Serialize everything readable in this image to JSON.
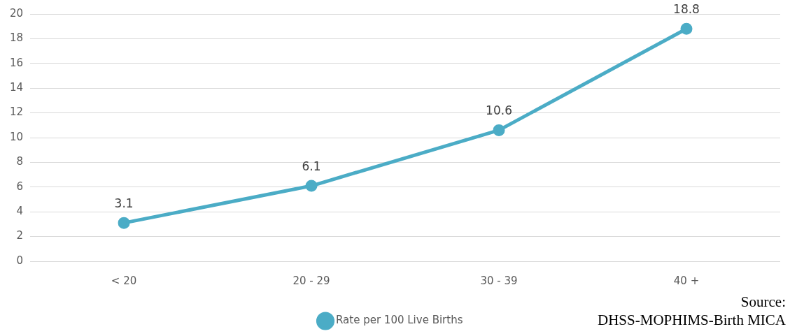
{
  "chart_data": {
    "type": "line",
    "categories": [
      "< 20",
      "20 - 29",
      "30 - 39",
      "40 +"
    ],
    "series": [
      {
        "name": "Rate per 100 Live Births",
        "color": "#4bacc6",
        "values": [
          3.1,
          6.1,
          10.6,
          18.8
        ]
      }
    ],
    "ylim": [
      0,
      20
    ],
    "yticks": [
      0,
      2,
      4,
      6,
      8,
      10,
      12,
      14,
      16,
      18,
      20
    ],
    "grid": "y",
    "legend": "bottom",
    "marker": "circle",
    "line_style": "solid",
    "data_labels": true,
    "annotations": [
      "Source:\nDHSS-MOPHIMS-Birth MICA"
    ]
  }
}
